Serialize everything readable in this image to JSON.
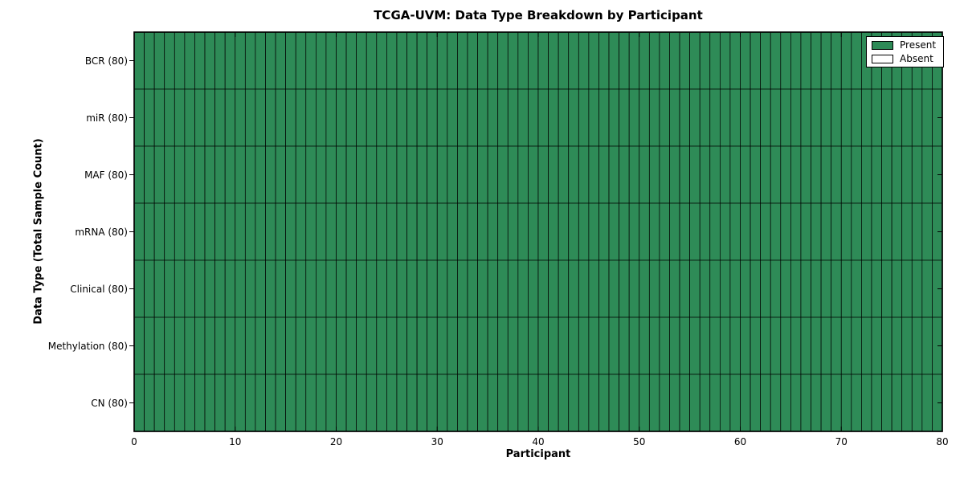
{
  "chart_data": {
    "type": "heatmap",
    "title": "TCGA-UVM: Data Type Breakdown by Participant",
    "xlabel": "Participant",
    "ylabel": "Data Type (Total Sample Count)",
    "xlim": [
      0,
      80
    ],
    "x_ticks": [
      0,
      10,
      20,
      30,
      40,
      50,
      60,
      70,
      80
    ],
    "n_participants": 80,
    "rows": [
      {
        "label": "BCR (80)",
        "data_type": "BCR",
        "total_samples": 80,
        "present_count": 80
      },
      {
        "label": "miR (80)",
        "data_type": "miR",
        "total_samples": 80,
        "present_count": 80
      },
      {
        "label": "MAF (80)",
        "data_type": "MAF",
        "total_samples": 80,
        "present_count": 80
      },
      {
        "label": "mRNA (80)",
        "data_type": "mRNA",
        "total_samples": 80,
        "present_count": 80
      },
      {
        "label": "Clinical (80)",
        "data_type": "Clinical",
        "total_samples": 80,
        "present_count": 80
      },
      {
        "label": "Methylation (80)",
        "data_type": "Methylation",
        "total_samples": 80,
        "present_count": 80
      },
      {
        "label": "CN (80)",
        "data_type": "CN",
        "total_samples": 80,
        "present_count": 80
      }
    ],
    "legend": {
      "position": "upper right",
      "entries": [
        {
          "label": "Present",
          "color": "#2e8b57"
        },
        {
          "label": "Absent",
          "color": "#ffffff"
        }
      ]
    },
    "colors": {
      "present": "#2e8b57",
      "absent": "#ffffff",
      "cell_edge": "#000000",
      "spine": "#000000"
    },
    "grid": "cell-borders",
    "tick_style": {
      "x_direction": "in",
      "y_left_direction": "out",
      "y_right_direction": "in"
    }
  }
}
